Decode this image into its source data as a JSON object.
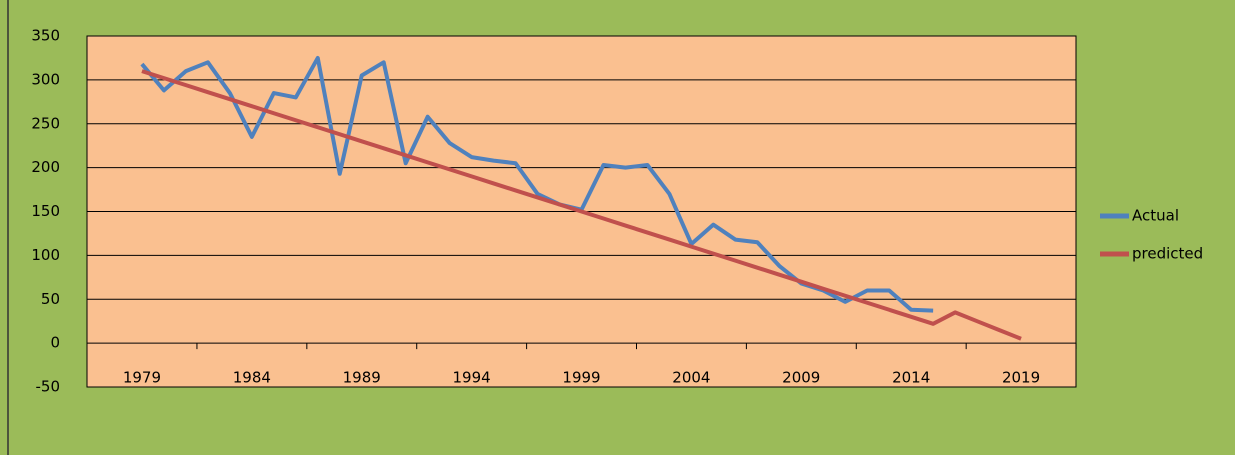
{
  "chart_data": {
    "type": "line",
    "x": [
      1979,
      1980,
      1981,
      1982,
      1983,
      1984,
      1985,
      1986,
      1987,
      1988,
      1989,
      1990,
      1991,
      1992,
      1993,
      1994,
      1995,
      1996,
      1997,
      1998,
      1999,
      2000,
      2001,
      2002,
      2003,
      2004,
      2005,
      2006,
      2007,
      2008,
      2009,
      2010,
      2011,
      2012,
      2013,
      2014,
      2015,
      2016,
      2017,
      2018,
      2019
    ],
    "series": [
      {
        "name": "Actual",
        "color": "#4f81bd",
        "values": [
          318,
          288,
          310,
          320,
          285,
          235,
          285,
          280,
          325,
          193,
          305,
          320,
          205,
          258,
          228,
          212,
          208,
          205,
          170,
          158,
          152,
          203,
          200,
          203,
          170,
          113,
          135,
          118,
          115,
          88,
          68,
          60,
          47,
          60,
          60,
          38,
          37,
          null,
          null,
          null,
          null
        ]
      },
      {
        "name": "predicted",
        "color": "#c0504d",
        "values": [
          310,
          302,
          294,
          286,
          278,
          270,
          262,
          254,
          246,
          238,
          230,
          222,
          214,
          206,
          198,
          190,
          182,
          174,
          166,
          158,
          150,
          142,
          134,
          126,
          118,
          110,
          102,
          94,
          86,
          78,
          70,
          62,
          54,
          46,
          38,
          30,
          22,
          35,
          25,
          15,
          5
        ]
      }
    ],
    "xlim": [
      1976.5,
      2021.5
    ],
    "xticks": [
      1979,
      1984,
      1989,
      1994,
      1999,
      2004,
      2009,
      2014,
      2019
    ],
    "ylim": [
      -50,
      350
    ],
    "yticks": [
      -50,
      0,
      50,
      100,
      150,
      200,
      250,
      300,
      350
    ],
    "grid": true,
    "legend": "right"
  }
}
